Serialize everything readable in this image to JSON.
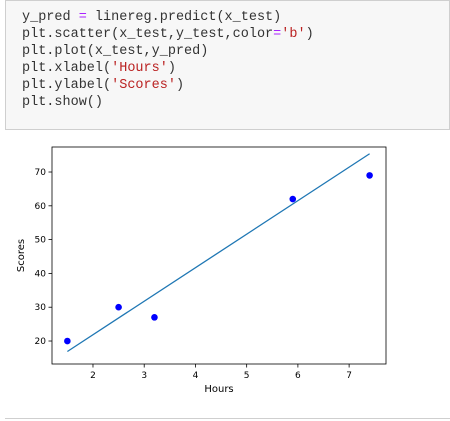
{
  "code": {
    "lines": [
      [
        {
          "text": "y_pred ",
          "color": "#333333"
        },
        {
          "text": "=",
          "color": "#aa22ff"
        },
        {
          "text": " linereg.predict(x_test)",
          "color": "#333333"
        }
      ],
      [
        {
          "text": "plt.scatter(x_test,y_test,color",
          "color": "#333333"
        },
        {
          "text": "=",
          "color": "#aa22ff"
        },
        {
          "text": "'b'",
          "color": "#ba2121"
        },
        {
          "text": ")",
          "color": "#333333"
        }
      ],
      [
        {
          "text": "plt.plot(x_test,y_pred)",
          "color": "#333333"
        }
      ],
      [
        {
          "text": "plt.xlabel(",
          "color": "#333333"
        },
        {
          "text": "'Hours'",
          "color": "#ba2121"
        },
        {
          "text": ")",
          "color": "#333333"
        }
      ],
      [
        {
          "text": "plt.ylabel(",
          "color": "#333333"
        },
        {
          "text": "'Scores'",
          "color": "#ba2121"
        },
        {
          "text": ")",
          "color": "#333333"
        }
      ],
      [
        {
          "text": "plt.show()",
          "color": "#333333"
        }
      ]
    ]
  },
  "chart_data": {
    "type": "scatter",
    "x_label": "Hours",
    "y_label": "Scores",
    "xlim": [
      1.2,
      7.72
    ],
    "ylim": [
      13.2,
      77.4
    ],
    "xticks": [
      2,
      3,
      4,
      5,
      6,
      7
    ],
    "yticks": [
      20,
      30,
      40,
      50,
      60,
      70
    ],
    "series": [
      {
        "type": "scatter",
        "color": "#0000ff",
        "x": [
          1.5,
          2.5,
          3.2,
          5.9,
          7.4
        ],
        "values": [
          20,
          30,
          27,
          62,
          69
        ]
      },
      {
        "type": "line",
        "color": "#1f77b4",
        "x": [
          1.5,
          7.4
        ],
        "values": [
          16.9,
          75.4
        ]
      }
    ]
  }
}
